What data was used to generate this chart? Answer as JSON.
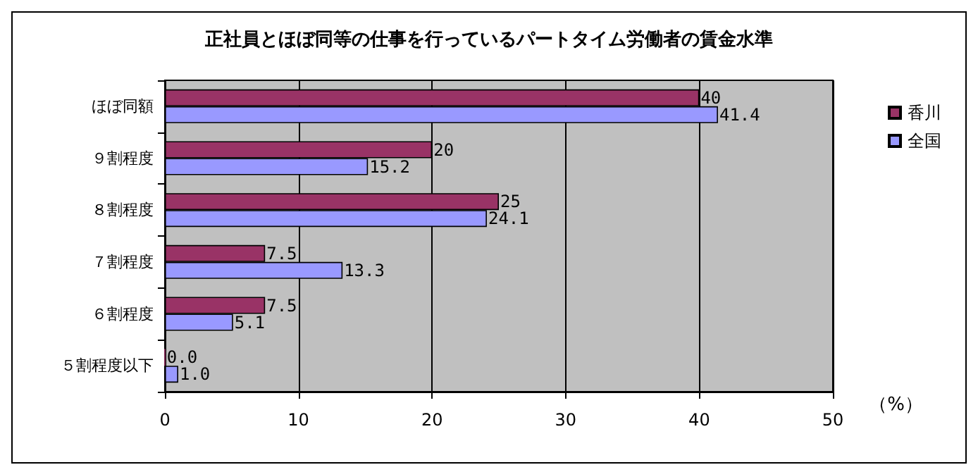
{
  "chart_data": {
    "type": "bar",
    "orientation": "horizontal",
    "title": "正社員とほぼ同等の仕事を行っているパートタイム労働者の賃金水準",
    "categories": [
      "ほぼ同額",
      "９割程度",
      "８割程度",
      "７割程度",
      "６割程度",
      "５割程度以下"
    ],
    "series": [
      {
        "name": "香川",
        "color": "#993366",
        "values": [
          40,
          20,
          25,
          7.5,
          7.5,
          0
        ],
        "value_labels": [
          "40",
          "20",
          "25",
          "7.5",
          "7.5",
          "0.0"
        ]
      },
      {
        "name": "全国",
        "color": "#9999ff",
        "values": [
          41.4,
          15.2,
          24.1,
          13.3,
          5.1,
          1.0
        ],
        "value_labels": [
          "41.4",
          "15.2",
          "24.1",
          "13.3",
          "5.1",
          "1.0"
        ]
      }
    ],
    "xlim": [
      0,
      50
    ],
    "xticks": [
      0,
      10,
      20,
      30,
      40,
      50
    ],
    "grid": "x",
    "legend": "right",
    "annotations": [
      "（%）"
    ]
  }
}
